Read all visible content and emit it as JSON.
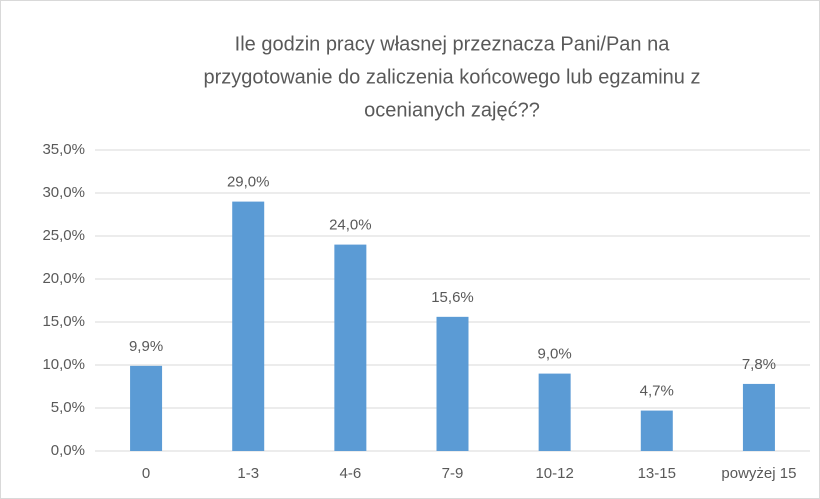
{
  "chart_data": {
    "type": "bar",
    "title": [
      "Ile godzin pracy własnej przeznacza Pani/Pan na",
      "przygotowanie do zaliczenia końcowego lub egzaminu z",
      "ocenianych zajęć??"
    ],
    "categories": [
      "0",
      "1-3",
      "4-6",
      "7-9",
      "10-12",
      "13-15",
      "powyżej 15"
    ],
    "values": [
      9.9,
      29.0,
      24.0,
      15.6,
      9.0,
      4.7,
      7.8
    ],
    "value_labels": [
      "9,9%",
      "29,0%",
      "24,0%",
      "15,6%",
      "9,0%",
      "4,7%",
      "7,8%"
    ],
    "color": "#5b9bd5",
    "ylim": [
      0,
      35
    ],
    "yticks": [
      {
        "value": 0,
        "label": "0,0%"
      },
      {
        "value": 5,
        "label": "5,0%"
      },
      {
        "value": 10,
        "label": "10,0%"
      },
      {
        "value": 15,
        "label": "15,0%"
      },
      {
        "value": 20,
        "label": "20,0%"
      },
      {
        "value": 25,
        "label": "25,0%"
      },
      {
        "value": 30,
        "label": "30,0%"
      },
      {
        "value": 35,
        "label": "35,0%"
      }
    ],
    "grid": true
  }
}
